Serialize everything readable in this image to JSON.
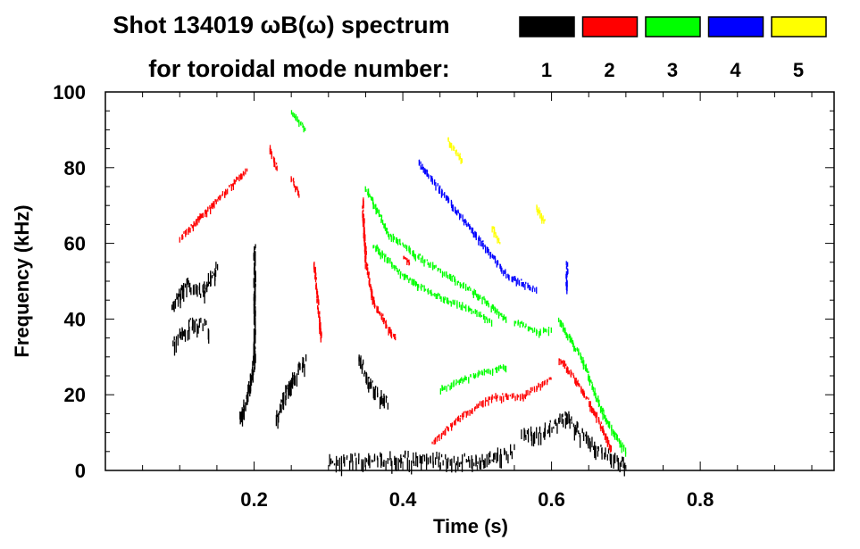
{
  "chart_data": {
    "type": "heatmap",
    "title": "Shot 134019 ωB(ω) spectrum",
    "subtitle": "for toroidal mode number:",
    "xlabel": "Time (s)",
    "ylabel": "Frequency (kHz)",
    "xlim": [
      0,
      0.98
    ],
    "ylim": [
      0,
      100
    ],
    "xticks": [
      0.2,
      0.4,
      0.6,
      0.8
    ],
    "xtick_labels": [
      "0.2",
      "0.4",
      "0.6",
      "0.8"
    ],
    "yticks": [
      0,
      20,
      40,
      60,
      80,
      100
    ],
    "ytick_labels": [
      "0",
      "20",
      "40",
      "60",
      "80",
      "100"
    ],
    "legend": [
      {
        "label": "1",
        "color": "#000000"
      },
      {
        "label": "2",
        "color": "#ff0000"
      },
      {
        "label": "3",
        "color": "#00ff00"
      },
      {
        "label": "4",
        "color": "#0000ff"
      },
      {
        "label": "5",
        "color": "#ffff00"
      }
    ],
    "legend_placement": "top-right",
    "series": [
      {
        "name": "1",
        "color": "#000000",
        "traces": [
          [
            [
              0.09,
              45
            ],
            [
              0.11,
              50
            ],
            [
              0.13,
              48
            ],
            [
              0.15,
              55
            ]
          ],
          [
            [
              0.09,
              35
            ],
            [
              0.12,
              40
            ],
            [
              0.14,
              38
            ]
          ],
          [
            [
              0.18,
              15
            ],
            [
              0.19,
              20
            ],
            [
              0.2,
              30
            ],
            [
              0.2,
              60
            ]
          ],
          [
            [
              0.23,
              15
            ],
            [
              0.25,
              25
            ],
            [
              0.27,
              30
            ]
          ],
          [
            [
              0.34,
              30
            ],
            [
              0.36,
              22
            ],
            [
              0.38,
              18
            ]
          ],
          [
            [
              0.3,
              3
            ],
            [
              0.4,
              4
            ],
            [
              0.5,
              3
            ],
            [
              0.55,
              6
            ]
          ],
          [
            [
              0.56,
              10
            ],
            [
              0.6,
              12
            ],
            [
              0.62,
              15
            ],
            [
              0.65,
              8
            ],
            [
              0.7,
              2
            ]
          ]
        ]
      },
      {
        "name": "2",
        "color": "#ff0000",
        "traces": [
          [
            [
              0.1,
              62
            ],
            [
              0.13,
              68
            ],
            [
              0.16,
              74
            ],
            [
              0.19,
              80
            ]
          ],
          [
            [
              0.22,
              86
            ],
            [
              0.23,
              80
            ]
          ],
          [
            [
              0.25,
              78
            ],
            [
              0.26,
              73
            ]
          ],
          [
            [
              0.28,
              55
            ],
            [
              0.29,
              35
            ]
          ],
          [
            [
              0.345,
              72
            ],
            [
              0.35,
              55
            ],
            [
              0.36,
              45
            ],
            [
              0.38,
              38
            ],
            [
              0.39,
              35
            ]
          ],
          [
            [
              0.4,
              57
            ],
            [
              0.41,
              55
            ]
          ],
          [
            [
              0.44,
              8
            ],
            [
              0.48,
              15
            ],
            [
              0.52,
              20
            ],
            [
              0.56,
              20
            ],
            [
              0.6,
              25
            ]
          ],
          [
            [
              0.61,
              30
            ],
            [
              0.63,
              25
            ],
            [
              0.66,
              15
            ],
            [
              0.68,
              6
            ]
          ]
        ]
      },
      {
        "name": "3",
        "color": "#00ff00",
        "traces": [
          [
            [
              0.25,
              95
            ],
            [
              0.27,
              90
            ]
          ],
          [
            [
              0.35,
              75
            ],
            [
              0.38,
              63
            ],
            [
              0.42,
              57
            ],
            [
              0.46,
              52
            ],
            [
              0.5,
              47
            ],
            [
              0.54,
              40
            ]
          ],
          [
            [
              0.36,
              60
            ],
            [
              0.4,
              52
            ],
            [
              0.44,
              47
            ],
            [
              0.48,
              44
            ],
            [
              0.52,
              40
            ]
          ],
          [
            [
              0.55,
              40
            ],
            [
              0.58,
              37
            ],
            [
              0.6,
              38
            ]
          ],
          [
            [
              0.61,
              40
            ],
            [
              0.64,
              30
            ],
            [
              0.67,
              15
            ],
            [
              0.7,
              5
            ]
          ],
          [
            [
              0.45,
              22
            ],
            [
              0.5,
              26
            ],
            [
              0.54,
              28
            ]
          ]
        ]
      },
      {
        "name": "4",
        "color": "#0000ff",
        "traces": [
          [
            [
              0.42,
              82
            ],
            [
              0.46,
              72
            ],
            [
              0.5,
              62
            ],
            [
              0.54,
              52
            ],
            [
              0.58,
              48
            ]
          ],
          [
            [
              0.62,
              55
            ],
            [
              0.62,
              48
            ]
          ]
        ]
      },
      {
        "name": "5",
        "color": "#ffff00",
        "traces": [
          [
            [
              0.46,
              88
            ],
            [
              0.48,
              82
            ]
          ],
          [
            [
              0.52,
              65
            ],
            [
              0.53,
              60
            ]
          ],
          [
            [
              0.58,
              70
            ],
            [
              0.59,
              66
            ]
          ]
        ]
      }
    ]
  }
}
